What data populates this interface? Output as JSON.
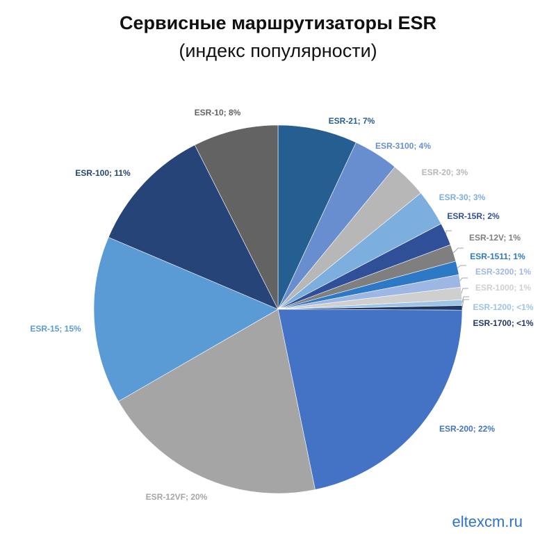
{
  "title": "Сервисные маршрутизаторы ESR",
  "subtitle": "(индекс популярности)",
  "watermark": "eltexcm.ru",
  "chart_data": {
    "type": "pie",
    "start_angle_deg": 0,
    "direction": "clockwise",
    "slices": [
      {
        "label": "ESR-21; 7%",
        "value": 7.0,
        "color": "#255e91"
      },
      {
        "label": "ESR-3100; 4%",
        "value": 4.0,
        "color": "#698ed0"
      },
      {
        "label": "ESR-20; 3%",
        "value": 3.2,
        "color": "#b7b7b7"
      },
      {
        "label": "ESR-30; 3%",
        "value": 3.2,
        "color": "#7cafdd"
      },
      {
        "label": "ESR-15R; 2%",
        "value": 2.0,
        "color": "#2f4f99"
      },
      {
        "label": "ESR-12V; 1%",
        "value": 1.5,
        "color": "#7f7f7f"
      },
      {
        "label": "ESR-1511; 1%",
        "value": 1.2,
        "color": "#2e79c5"
      },
      {
        "label": "ESR-3200; 1%",
        "value": 1.1,
        "color": "#9eb6e3"
      },
      {
        "label": "ESR-1000; 1%",
        "value": 1.1,
        "color": "#cfcfcf"
      },
      {
        "label": "ESR-1200; <1%",
        "value": 0.5,
        "color": "#9dc3e6"
      },
      {
        "label": "ESR-1700; <1%",
        "value": 0.4,
        "color": "#1f3864"
      },
      {
        "label": "ESR-200; 22%",
        "value": 21.8,
        "color": "#4472c4"
      },
      {
        "label": "ESR-12VF; 20%",
        "value": 20.0,
        "color": "#a5a5a5"
      },
      {
        "label": "ESR-15; 15%",
        "value": 14.8,
        "color": "#5b9bd5"
      },
      {
        "label": "ESR-100; 11%",
        "value": 11.2,
        "color": "#264478"
      },
      {
        "label": "ESR-10; 8%",
        "value": 7.5,
        "color": "#636363"
      }
    ]
  }
}
